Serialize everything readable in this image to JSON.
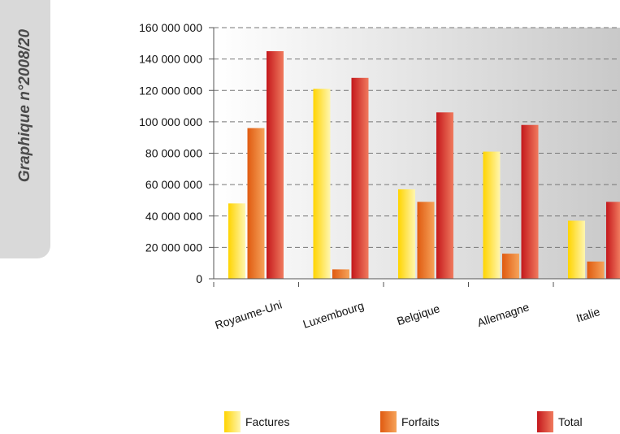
{
  "side_tab": {
    "title": "Graphique n°2008/20"
  },
  "colors": {
    "factures": [
      "#ffd400",
      "#fff6b0"
    ],
    "forfaits": [
      "#e05a10",
      "#f6a35a"
    ],
    "total": [
      "#c4181c",
      "#f07a5e"
    ]
  },
  "chart_data": {
    "type": "bar",
    "categories": [
      "Royaume-Uni",
      "Luxembourg",
      "Belgique",
      "Allemagne",
      "Italie"
    ],
    "series": [
      {
        "name": "Factures",
        "values": [
          48000000,
          121000000,
          57000000,
          81000000,
          37000000
        ]
      },
      {
        "name": "Forfaits",
        "values": [
          96000000,
          6000000,
          49000000,
          16000000,
          11000000
        ]
      },
      {
        "name": "Total",
        "values": [
          145000000,
          128000000,
          106000000,
          98000000,
          49000000
        ]
      }
    ],
    "yticks": [
      "0",
      "20 000 000",
      "40 000 000",
      "60 000 000",
      "80 000 000",
      "100 000 000",
      "120 000 000",
      "140 000 000",
      "160 000 000"
    ],
    "ylim": [
      0,
      160000000
    ],
    "grid": true,
    "legend_position": "bottom"
  }
}
